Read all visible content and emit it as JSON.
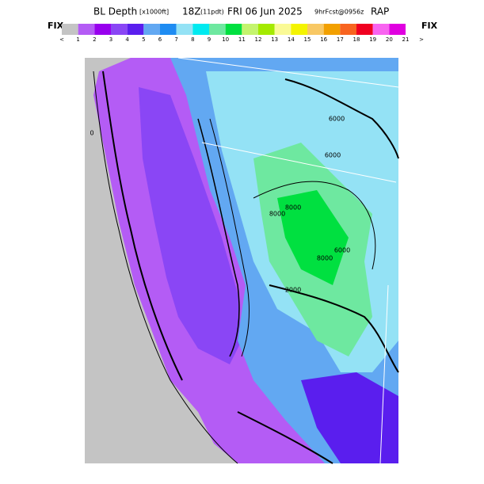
{
  "header": {
    "title": "BL Depth",
    "units": "[x1000ft]",
    "time": "18Z",
    "local": "(11pdt)",
    "date": "FRI 06 Jun 2025",
    "forecast": "9hrFcst@0956z",
    "model": "RAP"
  },
  "scale": {
    "left_label": "FIX",
    "right_label": "FIX",
    "colors": [
      "#c4c4c4",
      "#b45cf5",
      "#9800ee",
      "#8a46f5",
      "#5a1eee",
      "#62a8f2",
      "#1e8cf2",
      "#94e2f5",
      "#00eaf0",
      "#6ee8a0",
      "#00e040",
      "#c4f46e",
      "#a4ea00",
      "#fafa96",
      "#f4f400",
      "#f8c864",
      "#f2a000",
      "#f86420",
      "#f00020",
      "#f864f0",
      "#e000e0"
    ],
    "ticks": [
      "<",
      "1",
      "2",
      "3",
      "4",
      "5",
      "6",
      "7",
      "8",
      "9",
      "10",
      "11",
      "12",
      "13",
      "14",
      "15",
      "16",
      "17",
      "18",
      "19",
      "20",
      "21"
    ],
    "overflow": ">"
  },
  "map": {
    "contour_labels": [
      "6000",
      "6000",
      "6000",
      "8000",
      "8000",
      "8000",
      "2000",
      "0"
    ]
  }
}
